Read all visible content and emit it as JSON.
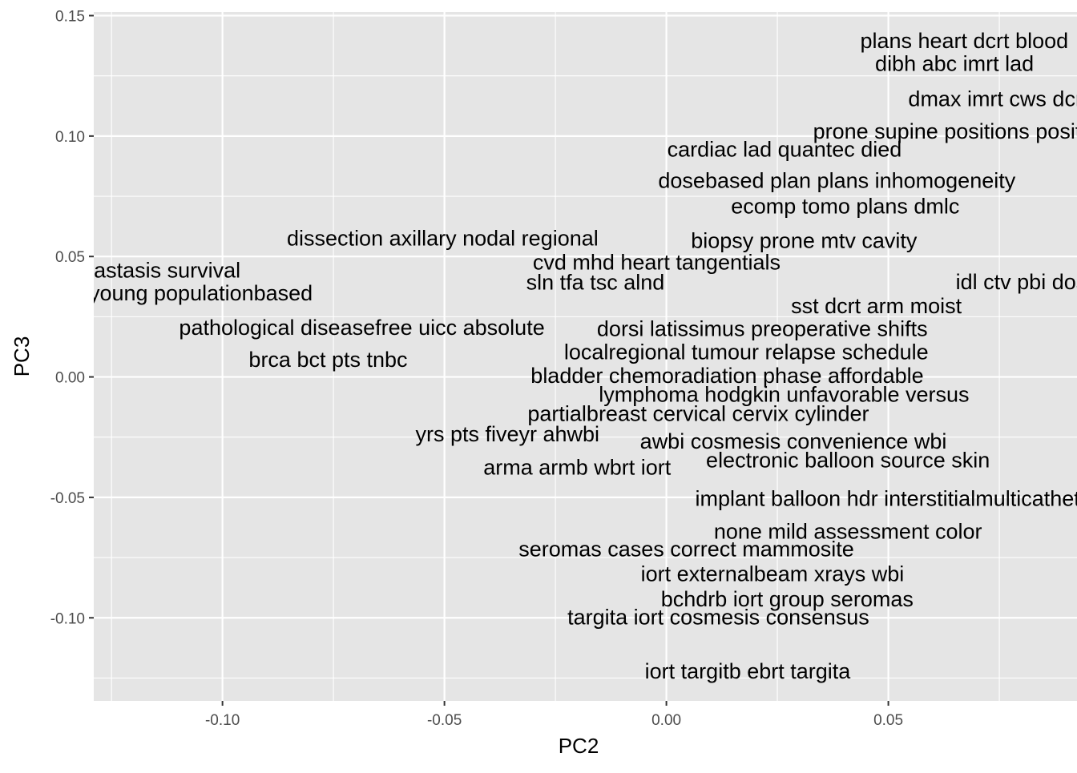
{
  "chart_data": {
    "type": "scatter",
    "title": "",
    "xlabel": "PC2",
    "ylabel": "PC3",
    "xlim": [
      -0.129,
      0.0925
    ],
    "ylim": [
      -0.1345,
      0.1515
    ],
    "x_ticks": [
      -0.1,
      -0.05,
      0.0,
      0.05
    ],
    "x_tick_labels": [
      "-0.10",
      "-0.05",
      "0.00",
      "0.05"
    ],
    "y_ticks": [
      -0.1,
      -0.05,
      0.0,
      0.05,
      0.1,
      0.15
    ],
    "y_tick_labels": [
      "-0.10",
      "-0.05",
      "0.00",
      "0.05",
      "0.10",
      "0.15"
    ],
    "grid": true,
    "colors": {
      "panel_background": "#e5e5e5",
      "grid_line": "#ffffff",
      "tick_text": "#4d4d4d",
      "label_text": "#000000"
    },
    "points": [
      {
        "label": "plans heart dcrt blood",
        "x": 0.0671,
        "y": 0.1395
      },
      {
        "label": "dibh abc imrt lad",
        "x": 0.0649,
        "y": 0.13
      },
      {
        "label": "dmax imrt cws dcrt",
        "x": 0.0748,
        "y": 0.1155
      },
      {
        "label": "prone supine positions positional",
        "x": 0.0684,
        "y": 0.102
      },
      {
        "label": "cardiac lad quantec died",
        "x": 0.0266,
        "y": 0.0945
      },
      {
        "label": "dosebased plan plans inhomogeneity",
        "x": 0.0384,
        "y": 0.0815
      },
      {
        "label": "ecomp tomo plans dmlc",
        "x": 0.0403,
        "y": 0.0708
      },
      {
        "label": "dissection axillary nodal regional",
        "x": -0.0504,
        "y": 0.0575
      },
      {
        "label": "biopsy prone mtv cavity",
        "x": 0.031,
        "y": 0.0565
      },
      {
        "label": "cvd mhd heart tangentials",
        "x": -0.0022,
        "y": 0.0475
      },
      {
        "label": "free metastasis survival",
        "x": -0.1214,
        "y": 0.0442
      },
      {
        "label": "sln tfa tsc alnd",
        "x": -0.016,
        "y": 0.0392
      },
      {
        "label": "idl ctv pbi dose",
        "x": 0.0813,
        "y": 0.0395
      },
      {
        "label": "mastectomy young populationbased",
        "x": -0.1187,
        "y": 0.0348
      },
      {
        "label": "sst dcrt arm moist",
        "x": 0.0473,
        "y": 0.0295
      },
      {
        "label": "pathological diseasefree uicc absolute",
        "x": -0.0686,
        "y": 0.0205
      },
      {
        "label": "dorsi latissimus preoperative shifts",
        "x": 0.0216,
        "y": 0.02
      },
      {
        "label": "localregional tumour relapse schedule",
        "x": 0.018,
        "y": 0.0103
      },
      {
        "label": "brca bct pts tnbc",
        "x": -0.0762,
        "y": 0.0072
      },
      {
        "label": "bladder chemoradiation phase affordable",
        "x": 0.0137,
        "y": 0.0006
      },
      {
        "label": "lymphoma hodgkin unfavorable versus",
        "x": 0.0265,
        "y": -0.0073
      },
      {
        "label": "partialbreast cervical cervix cylinder",
        "x": 0.0072,
        "y": -0.0153
      },
      {
        "label": "yrs pts fiveyr ahwbi",
        "x": -0.0358,
        "y": -0.0238
      },
      {
        "label": "awbi cosmesis convenience wbi",
        "x": 0.0286,
        "y": -0.0268
      },
      {
        "label": "electronic balloon source skin",
        "x": 0.0409,
        "y": -0.0345
      },
      {
        "label": "arma armb wbrt iort",
        "x": -0.0201,
        "y": -0.0375
      },
      {
        "label": "implant balloon hdr interstitialmulticatheter",
        "x": 0.052,
        "y": -0.0505
      },
      {
        "label": "none mild assessment color",
        "x": 0.0409,
        "y": -0.0642
      },
      {
        "label": "seromas cases correct mammosite",
        "x": 0.0045,
        "y": -0.0715
      },
      {
        "label": "iort externalbeam xrays wbi",
        "x": 0.0239,
        "y": -0.0818
      },
      {
        "label": "bchdrb iort group seromas",
        "x": 0.0272,
        "y": -0.0922
      },
      {
        "label": "targita iort cosmesis consensus",
        "x": 0.0117,
        "y": -0.0997
      },
      {
        "label": "iort targitb ebrt targita",
        "x": 0.0183,
        "y": -0.1222
      }
    ]
  }
}
